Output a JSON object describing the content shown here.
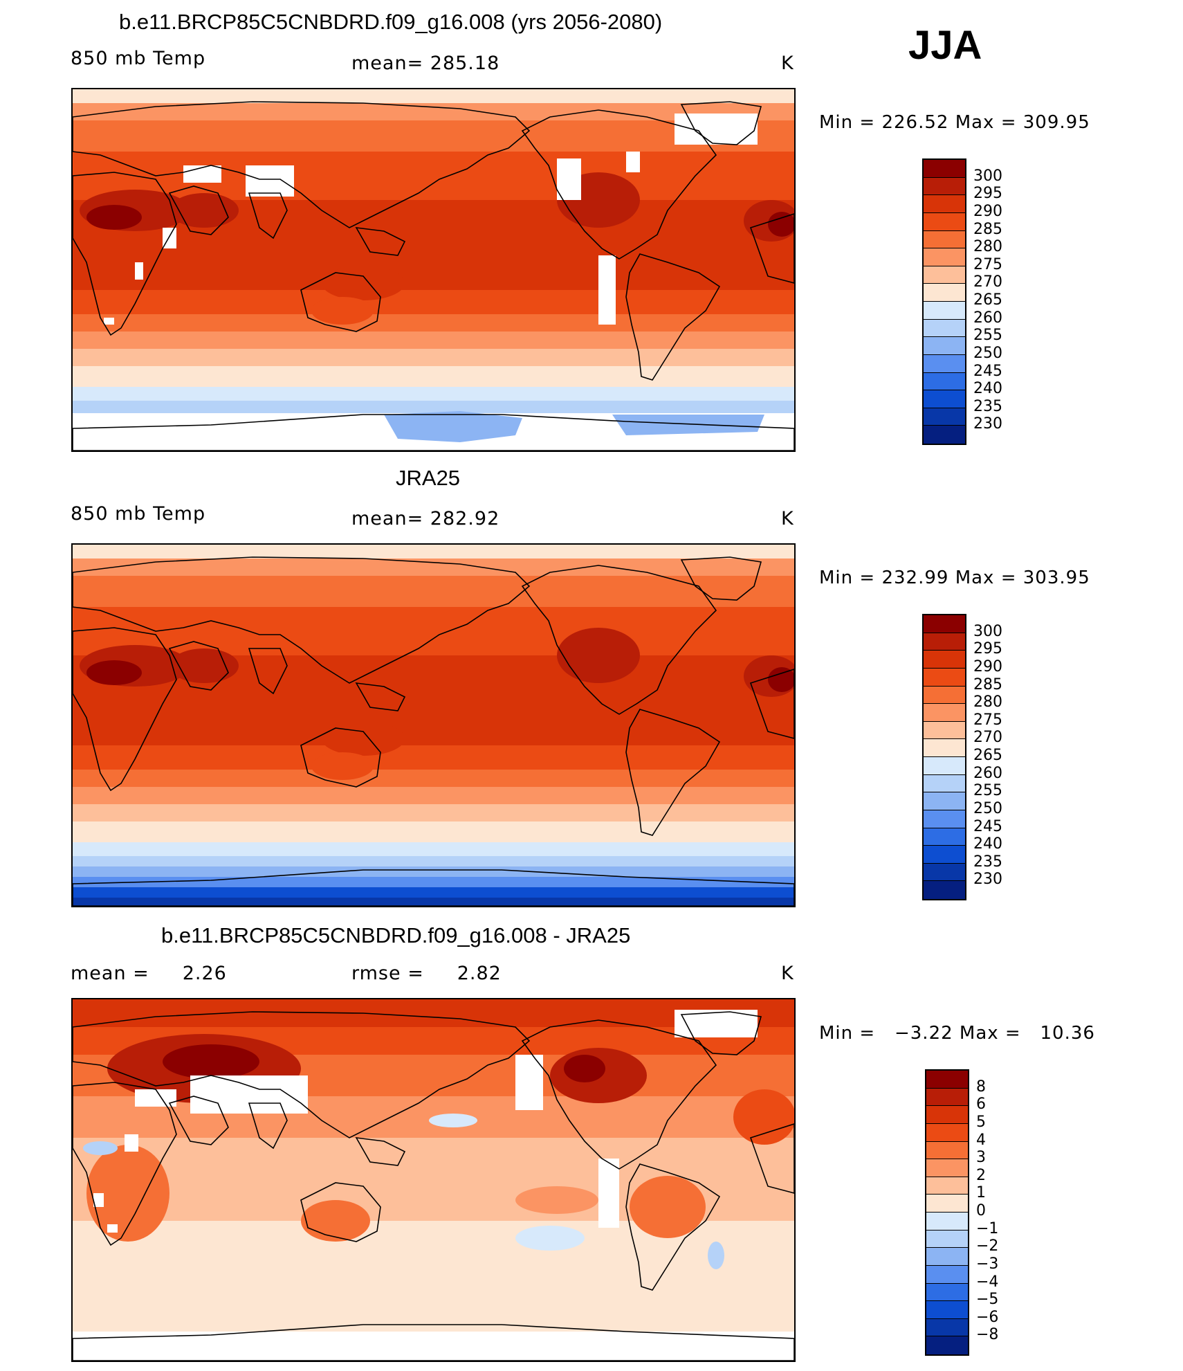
{
  "season": "JJA",
  "panels": [
    {
      "title": "b.e11.BRCP85C5CNBDRD.f09_g16.008 (yrs 2056-2080)",
      "left_label": "850 mb Temp",
      "center_label": "mean= 285.18",
      "units": "K",
      "minmax": "Min = 226.52 Max = 309.95",
      "colorbar": {
        "labels": [
          "300",
          "295",
          "290",
          "285",
          "280",
          "275",
          "270",
          "265",
          "260",
          "255",
          "250",
          "245",
          "240",
          "235",
          "230"
        ],
        "colors": [
          "#8b0000",
          "#b81e07",
          "#d83408",
          "#eb4b14",
          "#f56f35",
          "#fb9463",
          "#fdbf9a",
          "#fde6d2",
          "#d7e9fb",
          "#b5d2f8",
          "#8cb4f3",
          "#5a8ff0",
          "#2d6de4",
          "#0d4ed1",
          "#0837a8",
          "#051f80"
        ]
      },
      "map_style": "model"
    },
    {
      "title": "JRA25",
      "left_label": "850 mb Temp",
      "center_label": "mean= 282.92",
      "units": "K",
      "minmax": "Min = 232.99 Max = 303.95",
      "colorbar": {
        "labels": [
          "300",
          "295",
          "290",
          "285",
          "280",
          "275",
          "270",
          "265",
          "260",
          "255",
          "250",
          "245",
          "240",
          "235",
          "230"
        ],
        "colors": [
          "#8b0000",
          "#b81e07",
          "#d83408",
          "#eb4b14",
          "#f56f35",
          "#fb9463",
          "#fdbf9a",
          "#fde6d2",
          "#d7e9fb",
          "#b5d2f8",
          "#8cb4f3",
          "#5a8ff0",
          "#2d6de4",
          "#0d4ed1",
          "#0837a8",
          "#051f80"
        ]
      },
      "map_style": "obs"
    },
    {
      "title": "b.e11.BRCP85C5CNBDRD.f09_g16.008 - JRA25",
      "left_label": "mean =     2.26",
      "center_label": "rmse =     2.82",
      "units": "K",
      "minmax": "Min =   −3.22 Max =   10.36",
      "colorbar": {
        "labels": [
          "8",
          "6",
          "5",
          "4",
          "3",
          "2",
          "1",
          "0",
          "−1",
          "−2",
          "−3",
          "−4",
          "−5",
          "−6",
          "−8"
        ],
        "colors": [
          "#8b0000",
          "#b81e07",
          "#d83408",
          "#eb4b14",
          "#f56f35",
          "#fb9463",
          "#fdbf9a",
          "#fde6d2",
          "#d7e9fb",
          "#b5d2f8",
          "#8cb4f3",
          "#5a8ff0",
          "#2d6de4",
          "#0d4ed1",
          "#0837a8",
          "#051f80"
        ]
      },
      "map_style": "diff"
    }
  ]
}
